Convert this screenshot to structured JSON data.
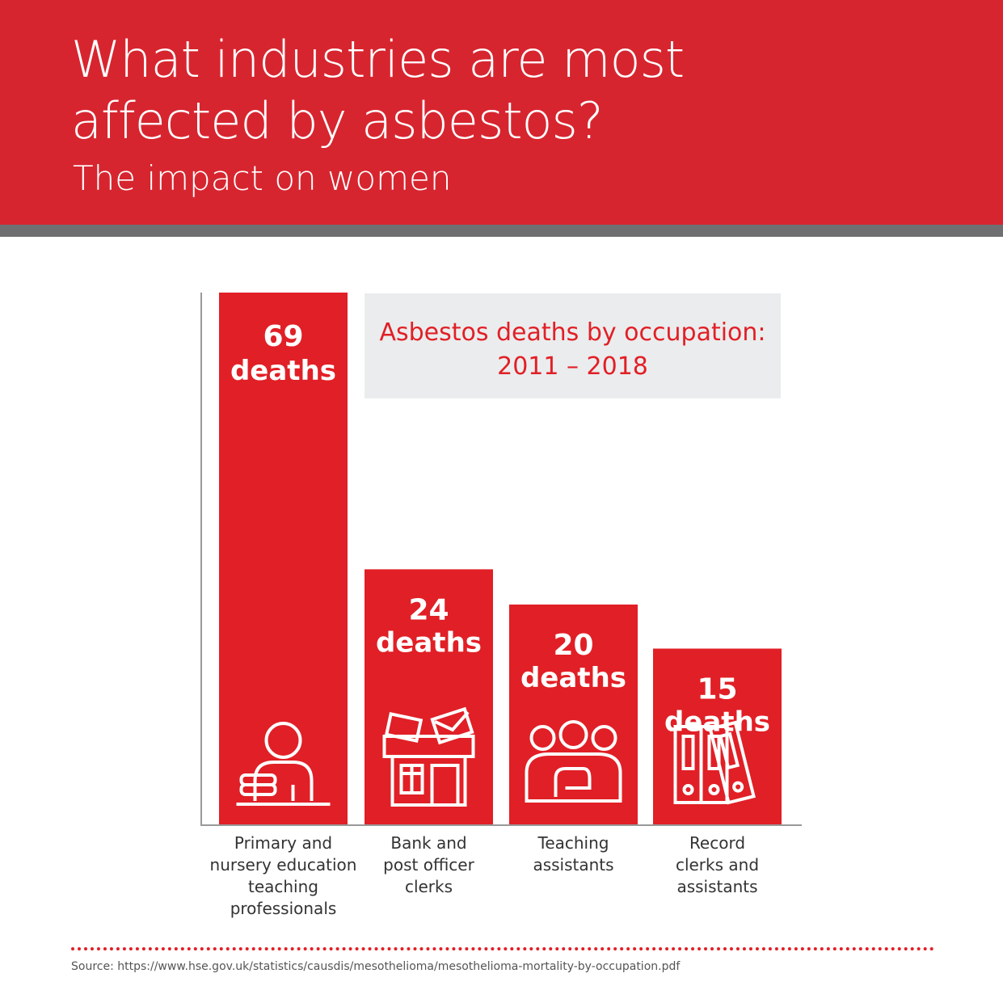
{
  "header": {
    "title_line1": "What industries are most",
    "title_line2": "affected by asbestos?",
    "subtitle": "The impact on women"
  },
  "chart_data": {
    "type": "bar",
    "title": "Asbestos deaths by occupation:",
    "subtitle": "2011 – 2018",
    "categories": [
      "Primary and nursery education teaching professionals",
      "Bank and post officer clerks",
      "Teaching assistants",
      "Record clerks and assistants"
    ],
    "category_lines": [
      [
        "Primary and",
        "nursery education",
        "teaching",
        "professionals"
      ],
      [
        "Bank and",
        "post officer",
        "clerks"
      ],
      [
        "Teaching",
        "assistants"
      ],
      [
        "Record",
        "clerks and",
        "assistants"
      ]
    ],
    "values": [
      69,
      24,
      20,
      15
    ],
    "value_labels": [
      "69",
      "24",
      "20",
      "15"
    ],
    "unit_label": "deaths",
    "icons": [
      "teacher-icon",
      "bank-post-office-icon",
      "teaching-assistants-icon",
      "record-binders-icon"
    ],
    "bar_color": "#e11f26"
  },
  "footer": {
    "source": "Source: https://www.hse.gov.uk/statistics/causdis/mesothelioma/mesothelioma-mortality-by-occupation.pdf"
  }
}
